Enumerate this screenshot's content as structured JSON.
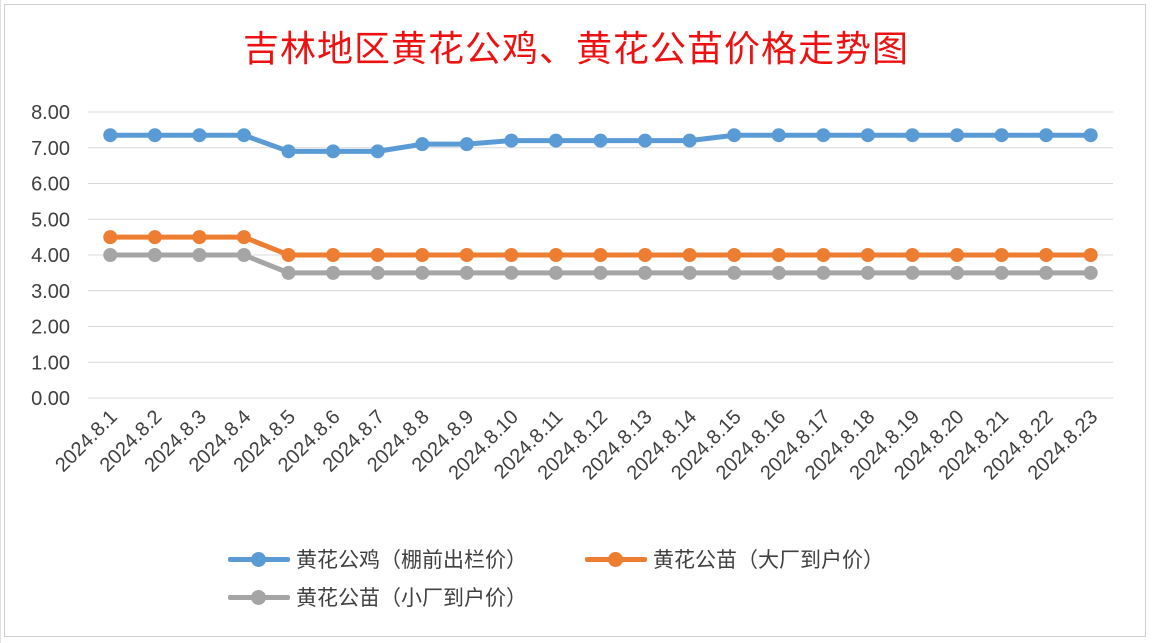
{
  "chart_data": {
    "type": "line",
    "title": "吉林地区黄花公鸡、黄花公苗价格走势图",
    "categories": [
      "2024.8.1",
      "2024.8.2",
      "2024.8.3",
      "2024.8.4",
      "2024.8.5",
      "2024.8.6",
      "2024.8.7",
      "2024.8.8",
      "2024.8.9",
      "2024.8.10",
      "2024.8.11",
      "2024.8.12",
      "2024.8.13",
      "2024.8.14",
      "2024.8.15",
      "2024.8.16",
      "2024.8.17",
      "2024.8.18",
      "2024.8.19",
      "2024.8.20",
      "2024.8.21",
      "2024.8.22",
      "2024.8.23"
    ],
    "yticks": [
      "0.00",
      "1.00",
      "2.00",
      "3.00",
      "4.00",
      "5.00",
      "6.00",
      "7.00",
      "8.00"
    ],
    "ylim": [
      0,
      8
    ],
    "grid": true,
    "legend_position": "bottom",
    "series": [
      {
        "name": "黄花公鸡（棚前出栏价）",
        "color": "#5b9bd5",
        "values": [
          7.35,
          7.35,
          7.35,
          7.35,
          6.9,
          6.9,
          6.9,
          7.1,
          7.1,
          7.2,
          7.2,
          7.2,
          7.2,
          7.2,
          7.35,
          7.35,
          7.35,
          7.35,
          7.35,
          7.35,
          7.35,
          7.35,
          7.35
        ]
      },
      {
        "name": "黄花公苗（大厂到户价）",
        "color": "#ed7d31",
        "values": [
          4.5,
          4.5,
          4.5,
          4.5,
          4.0,
          4.0,
          4.0,
          4.0,
          4.0,
          4.0,
          4.0,
          4.0,
          4.0,
          4.0,
          4.0,
          4.0,
          4.0,
          4.0,
          4.0,
          4.0,
          4.0,
          4.0,
          4.0
        ]
      },
      {
        "name": "黄花公苗（小厂到户价）",
        "color": "#a5a5a5",
        "values": [
          4.0,
          4.0,
          4.0,
          4.0,
          3.5,
          3.5,
          3.5,
          3.5,
          3.5,
          3.5,
          3.5,
          3.5,
          3.5,
          3.5,
          3.5,
          3.5,
          3.5,
          3.5,
          3.5,
          3.5,
          3.5,
          3.5,
          3.5
        ]
      }
    ]
  }
}
